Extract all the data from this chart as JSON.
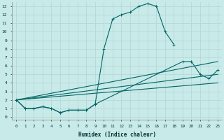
{
  "xlabel": "Humidex (Indice chaleur)",
  "bg_color": "#c8eae8",
  "line_color": "#006666",
  "grid_color": "#b8d8d8",
  "xlim": [
    -0.5,
    23.5
  ],
  "ylim": [
    -0.3,
    13.5
  ],
  "xticks": [
    0,
    1,
    2,
    3,
    4,
    5,
    6,
    7,
    8,
    9,
    10,
    11,
    12,
    13,
    14,
    15,
    16,
    17,
    18,
    19,
    20,
    21,
    22,
    23
  ],
  "yticks": [
    0,
    1,
    2,
    3,
    4,
    5,
    6,
    7,
    8,
    9,
    10,
    11,
    12,
    13
  ],
  "series_main": {
    "x": [
      0,
      1,
      2,
      3,
      4,
      5,
      6,
      7,
      8,
      9,
      10,
      11,
      12,
      13,
      14,
      15,
      16,
      17,
      18,
      19,
      20,
      21,
      22,
      23
    ],
    "y": [
      2,
      1,
      1,
      1.2,
      1,
      0.5,
      0.8,
      0.8,
      0.8,
      1.5,
      8,
      11.5,
      12,
      12.3,
      13,
      13.3,
      13.0,
      10,
      8.5,
      null,
      null,
      null,
      null,
      null
    ]
  },
  "series_low": {
    "x": [
      0,
      1,
      2,
      3,
      4,
      5,
      6,
      7,
      8,
      9,
      10,
      11,
      12,
      13,
      14,
      15,
      16,
      17,
      18,
      19,
      20,
      21,
      22,
      23
    ],
    "y": [
      2,
      1,
      1,
      1.2,
      1,
      0.5,
      0.8,
      0.8,
      0.8,
      1.5,
      null,
      null,
      null,
      null,
      null,
      null,
      null,
      null,
      null,
      null,
      null,
      null,
      null,
      null
    ]
  },
  "series_right": {
    "x": [
      9,
      19,
      20,
      21,
      22,
      23
    ],
    "y": [
      1.5,
      6.5,
      6.5,
      5,
      4.5,
      5.5
    ]
  },
  "line1": {
    "x": [
      0,
      23
    ],
    "y": [
      2.0,
      6.5
    ]
  },
  "line2": {
    "x": [
      0,
      23
    ],
    "y": [
      2.0,
      5.0
    ]
  },
  "line3": {
    "x": [
      0,
      23
    ],
    "y": [
      2.0,
      4.0
    ]
  }
}
